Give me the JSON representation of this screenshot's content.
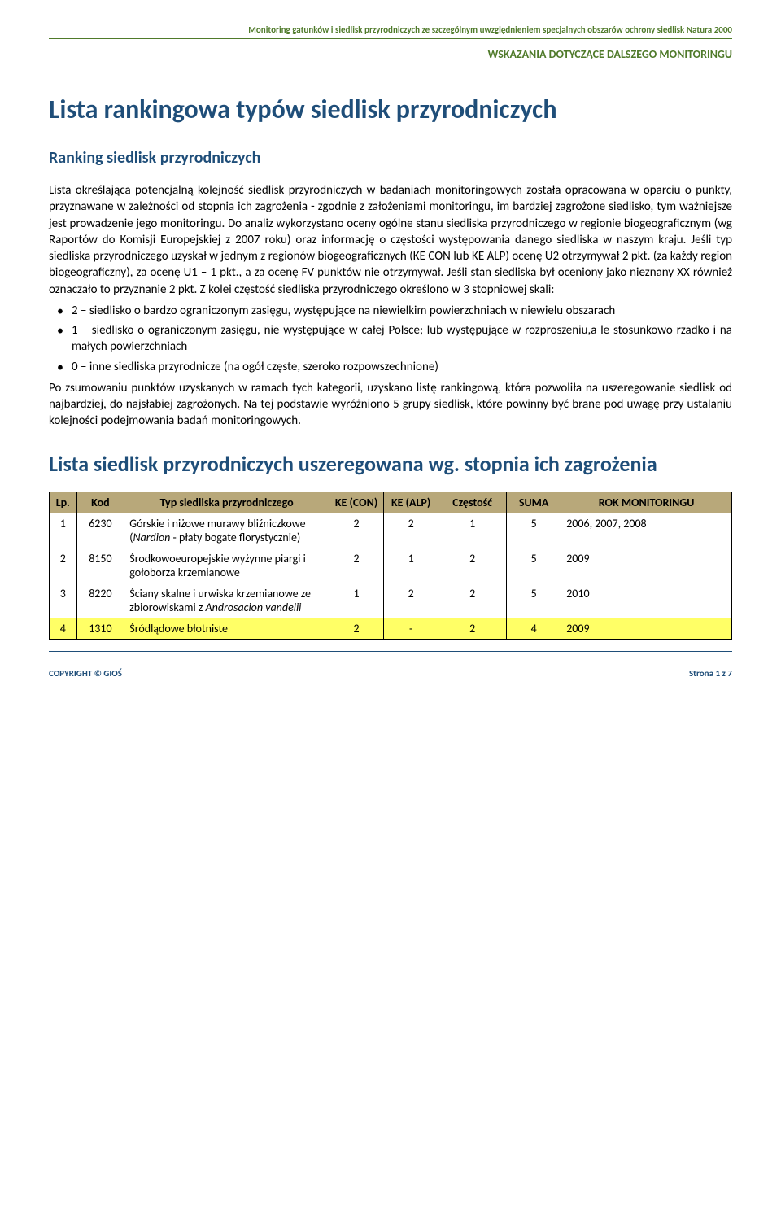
{
  "header": {
    "top_line": "Monitoring gatunków i siedlisk przyrodniczych ze szczególnym uwzględnieniem specjalnych obszarów ochrony siedlisk Natura 2000",
    "sub_line": "WSKAZANIA DOTYCZĄCE DALSZEGO MONITORINGU"
  },
  "title": "Lista rankingowa typów siedlisk przyrodniczych",
  "subtitle": "Ranking siedlisk przyrodniczych",
  "para1": "Lista określająca potencjalną kolejność siedlisk przyrodniczych w badaniach monitoringowych została opracowana w oparciu o punkty, przyznawane w zależności od stopnia ich zagrożenia - zgodnie z założeniami monitoringu, im bardziej zagrożone siedlisko, tym ważniejsze jest prowadzenie jego monitoringu. Do analiz wykorzystano oceny ogólne stanu siedliska przyrodniczego w regionie biogeograficznym (wg Raportów do Komisji Europejskiej z 2007 roku) oraz informację o częstości występowania danego siedliska w naszym kraju. Jeśli typ siedliska przyrodniczego uzyskał w jednym z regionów biogeograficznych (KE CON lub KE ALP) ocenę U2 otrzymywał 2 pkt. (za każdy region biogeograficzny), za ocenę U1 – 1 pkt., a za ocenę FV punktów nie otrzymywał. Jeśli stan siedliska był oceniony jako nieznany XX również oznaczało to przyznanie 2 pkt. Z kolei częstość siedliska przyrodniczego określono w 3 stopniowej skali:",
  "bullets": [
    "2 – siedlisko o bardzo ograniczonym zasięgu, występujące na niewielkim powierzchniach w niewielu obszarach",
    "1 – siedlisko o ograniczonym zasięgu, nie występujące w całej Polsce; lub występujące w rozproszeniu,a le stosunkowo rzadko i na małych powierzchniach",
    "0 – inne siedliska przyrodnicze (na ogół częste, szeroko rozpowszechnione)"
  ],
  "para2": "Po zsumowaniu punktów uzyskanych w ramach tych kategorii, uzyskano listę rankingową, która pozwoliła na uszeregowanie siedlisk od najbardziej, do najsłabiej zagrożonych. Na tej podstawie wyróżniono 5 grupy siedlisk, które powinny być brane pod uwagę przy ustalaniu kolejności podejmowania badań monitoringowych.",
  "title2": "Lista siedlisk przyrodniczych uszeregowana wg. stopnia ich zagrożenia",
  "table": {
    "header_bg": "#b8a87a",
    "row_highlight_bg": "#ffff66",
    "columns": [
      "Lp.",
      "Kod",
      "Typ siedliska przyrodniczego",
      "KE (CON)",
      "KE (ALP)",
      "Częstość",
      "SUMA",
      "ROK MONITORINGU"
    ],
    "col_widths": [
      "4%",
      "7%",
      "30%",
      "8%",
      "8%",
      "10%",
      "8%",
      "25%"
    ],
    "rows": [
      {
        "highlight": false,
        "lp": "1",
        "kod": "6230",
        "typ_pre": "Górskie i niżowe murawy bliźniczkowe (",
        "typ_italic": "Nardion",
        "typ_post": " - płaty bogate florystycznie)",
        "con": "2",
        "alp": "2",
        "cz": "1",
        "suma": "5",
        "rok": "2006, 2007, 2008"
      },
      {
        "highlight": false,
        "lp": "2",
        "kod": "8150",
        "typ_pre": "Środkowoeuropejskie wyżynne piargi i gołoborza krzemianowe",
        "typ_italic": "",
        "typ_post": "",
        "con": "2",
        "alp": "1",
        "cz": "2",
        "suma": "5",
        "rok": "2009"
      },
      {
        "highlight": false,
        "lp": "3",
        "kod": "8220",
        "typ_pre": "Ściany skalne i urwiska krzemianowe ze zbiorowiskami z ",
        "typ_italic": "Androsacion vandelii",
        "typ_post": "",
        "con": "1",
        "alp": "2",
        "cz": "2",
        "suma": "5",
        "rok": "2010"
      },
      {
        "highlight": true,
        "lp": "4",
        "kod": "1310",
        "typ_pre": "Śródlądowe błotniste",
        "typ_italic": "",
        "typ_post": "",
        "con": "2",
        "alp": "-",
        "cz": "2",
        "suma": "4",
        "rok": "2009"
      }
    ]
  },
  "footer": {
    "left": "COPYRIGHT © GIOŚ",
    "right": "Strona 1 z 7"
  }
}
